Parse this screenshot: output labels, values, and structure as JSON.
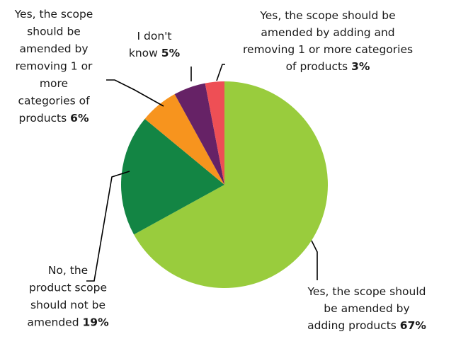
{
  "chart_data": {
    "type": "pie",
    "title": "",
    "slices": [
      {
        "label_lines": [
          "Yes, the scope should",
          "be amended by",
          "adding products"
        ],
        "value": 67,
        "value_label": "67%",
        "color": "#99CC3D"
      },
      {
        "label_lines": [
          "No, the",
          "product scope",
          "should not be",
          "amended"
        ],
        "value": 19,
        "value_label": "19%",
        "color": "#138544"
      },
      {
        "label_lines": [
          "Yes, the scope",
          "should be",
          "amended by",
          "removing 1 or",
          "more",
          "categories of",
          "products"
        ],
        "value": 6,
        "value_label": "6%",
        "color": "#F7941E"
      },
      {
        "label_lines": [
          "I don't",
          "know"
        ],
        "value": 5,
        "value_label": "5%",
        "color": "#662266"
      },
      {
        "label_lines": [
          "Yes, the scope should be",
          "amended by adding and",
          "removing 1 or more categories",
          "of products"
        ],
        "value": 3,
        "value_label": "3%",
        "color": "#EE4F55"
      }
    ]
  }
}
